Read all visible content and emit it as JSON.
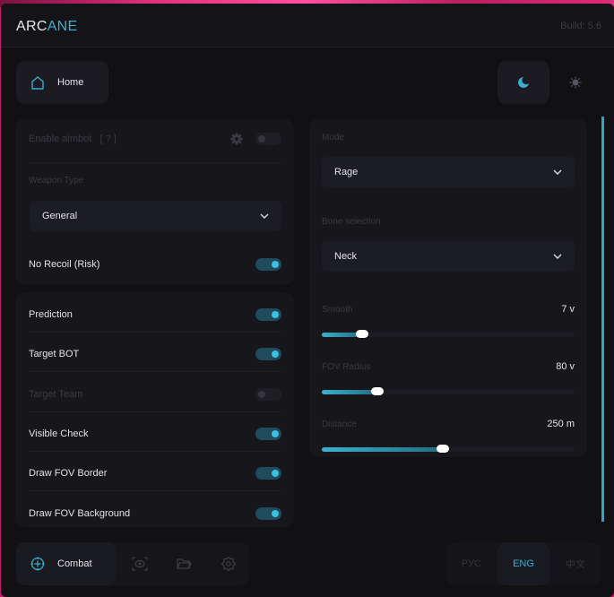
{
  "app": {
    "logo_left": "ARC",
    "logo_right": "ANE",
    "build": "Build: 5.6"
  },
  "header": {
    "home_label": "Home",
    "theme": {
      "active": "dark"
    }
  },
  "colors": {
    "accent": "#3aaed0",
    "background": "#111114",
    "panel": "#16161b"
  },
  "left_panel_1": {
    "enable_aimbot": {
      "label": "Enable aimbot",
      "help": "[ ? ]",
      "enabled": false
    },
    "weapon_type": {
      "label": "Weapon Type",
      "value": "General"
    },
    "no_recoil": {
      "label": "No Recoil (Risk)",
      "enabled": true
    }
  },
  "left_panel_2": {
    "toggles": [
      {
        "label": "Prediction",
        "enabled": true
      },
      {
        "label": "Target BOT",
        "enabled": true
      },
      {
        "label": "Target Team",
        "enabled": false,
        "disabled": true
      },
      {
        "label": "Visible Check",
        "enabled": true
      },
      {
        "label": "Draw FOV Border",
        "enabled": true
      },
      {
        "label": "Draw FOV Background",
        "enabled": true
      }
    ]
  },
  "right_panel": {
    "mode": {
      "label": "Mode",
      "value": "Rage"
    },
    "bone": {
      "label": "Bone selection",
      "value": "Neck"
    },
    "sliders": [
      {
        "label": "Smooth",
        "value": "7 v",
        "fill_percent": 16
      },
      {
        "label": "FOV Radius",
        "value": "80 v",
        "fill_percent": 22
      },
      {
        "label": "Distance",
        "value": "250 m",
        "fill_percent": 48
      }
    ]
  },
  "bottom_nav": {
    "active_label": "Combat",
    "items": [
      "crosshair-icon",
      "eye-scan-icon",
      "folder-icon",
      "gear-icon"
    ]
  },
  "languages": {
    "items": [
      "РУС",
      "ENG",
      "中文"
    ],
    "active": "ENG"
  }
}
